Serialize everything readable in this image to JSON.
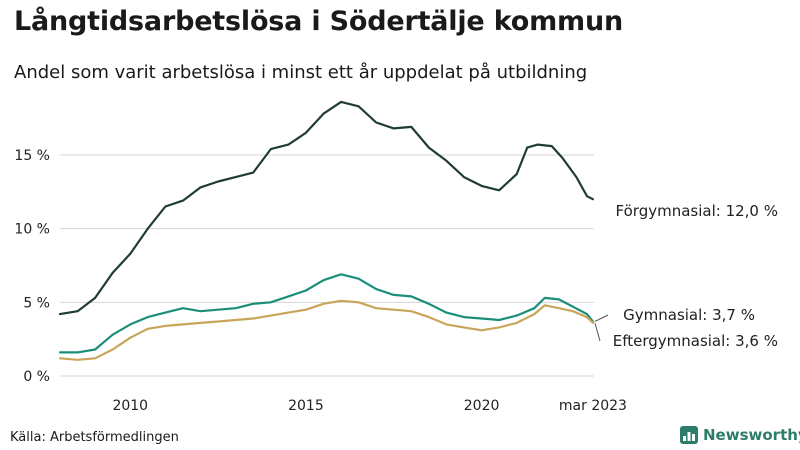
{
  "title": "Långtidsarbetslösa i Södertälje kommun",
  "subtitle": "Andel som varit arbetslösa i minst ett år uppdelat på utbildning",
  "source": "Källa: Arbetsförmedlingen",
  "logo_text": "Newsworthy",
  "colors": {
    "forgymnasial": "#1f3d36",
    "gymnasial": "#1b8e7a",
    "eftergymnasial": "#c9a55a",
    "grid": "#d6d6d6",
    "logo": "#2e7d6b"
  },
  "chart_data": {
    "type": "line",
    "title": "Långtidsarbetslösa i Södertälje kommun",
    "xlabel": "",
    "ylabel": "",
    "xlim": [
      2008.0,
      2023.2
    ],
    "ylim": [
      0,
      19
    ],
    "x_ticks": [
      {
        "value": 2010,
        "label": "2010"
      },
      {
        "value": 2015,
        "label": "2015"
      },
      {
        "value": 2020,
        "label": "2020"
      },
      {
        "value": 2023.17,
        "label": "mar 2023"
      }
    ],
    "y_ticks": [
      {
        "value": 0,
        "label": "0 %"
      },
      {
        "value": 5,
        "label": "5 %"
      },
      {
        "value": 10,
        "label": "10 %"
      },
      {
        "value": 15,
        "label": "15 %"
      }
    ],
    "series": [
      {
        "key": "forgymnasial",
        "name": "Förgymnasial",
        "end_label": "Förgymnasial: 12,0 %",
        "x": [
          2008.0,
          2008.5,
          2009.0,
          2009.5,
          2010.0,
          2010.5,
          2011.0,
          2011.5,
          2012.0,
          2012.5,
          2013.0,
          2013.5,
          2014.0,
          2014.5,
          2015.0,
          2015.5,
          2016.0,
          2016.5,
          2017.0,
          2017.5,
          2018.0,
          2018.5,
          2019.0,
          2019.5,
          2020.0,
          2020.5,
          2021.0,
          2021.3,
          2021.6,
          2022.0,
          2022.3,
          2022.7,
          2023.0,
          2023.17
        ],
        "y": [
          4.2,
          4.4,
          5.3,
          7.0,
          8.3,
          10.0,
          11.5,
          11.9,
          12.8,
          13.2,
          13.5,
          13.8,
          15.4,
          15.7,
          16.5,
          17.8,
          18.6,
          18.3,
          17.2,
          16.8,
          16.9,
          15.5,
          14.6,
          13.5,
          12.9,
          12.6,
          13.7,
          15.5,
          15.7,
          15.6,
          14.8,
          13.5,
          12.2,
          12.0
        ]
      },
      {
        "key": "gymnasial",
        "name": "Gymnasial",
        "end_label": "Gymnasial:  3,7 %",
        "x": [
          2008.0,
          2008.5,
          2009.0,
          2009.5,
          2010.0,
          2010.5,
          2011.0,
          2011.5,
          2012.0,
          2012.5,
          2013.0,
          2013.5,
          2014.0,
          2014.5,
          2015.0,
          2015.5,
          2016.0,
          2016.5,
          2017.0,
          2017.5,
          2018.0,
          2018.5,
          2019.0,
          2019.5,
          2020.0,
          2020.5,
          2021.0,
          2021.5,
          2021.8,
          2022.2,
          2022.6,
          2023.0,
          2023.17
        ],
        "y": [
          1.6,
          1.6,
          1.8,
          2.8,
          3.5,
          4.0,
          4.3,
          4.6,
          4.4,
          4.5,
          4.6,
          4.9,
          5.0,
          5.4,
          5.8,
          6.5,
          6.9,
          6.6,
          5.9,
          5.5,
          5.4,
          4.9,
          4.3,
          4.0,
          3.9,
          3.8,
          4.1,
          4.6,
          5.3,
          5.2,
          4.7,
          4.2,
          3.7
        ]
      },
      {
        "key": "eftergymnasial",
        "name": "Eftergymnasial",
        "end_label": "Eftergymnasial:  3,6 %",
        "x": [
          2008.0,
          2008.5,
          2009.0,
          2009.5,
          2010.0,
          2010.5,
          2011.0,
          2011.5,
          2012.0,
          2012.5,
          2013.0,
          2013.5,
          2014.0,
          2014.5,
          2015.0,
          2015.5,
          2016.0,
          2016.5,
          2017.0,
          2017.5,
          2018.0,
          2018.5,
          2019.0,
          2019.5,
          2020.0,
          2020.5,
          2021.0,
          2021.5,
          2021.8,
          2022.2,
          2022.6,
          2023.0,
          2023.17
        ],
        "y": [
          1.2,
          1.1,
          1.2,
          1.8,
          2.6,
          3.2,
          3.4,
          3.5,
          3.6,
          3.7,
          3.8,
          3.9,
          4.1,
          4.3,
          4.5,
          4.9,
          5.1,
          5.0,
          4.6,
          4.5,
          4.4,
          4.0,
          3.5,
          3.3,
          3.1,
          3.3,
          3.6,
          4.2,
          4.8,
          4.6,
          4.4,
          4.0,
          3.6
        ]
      }
    ]
  }
}
